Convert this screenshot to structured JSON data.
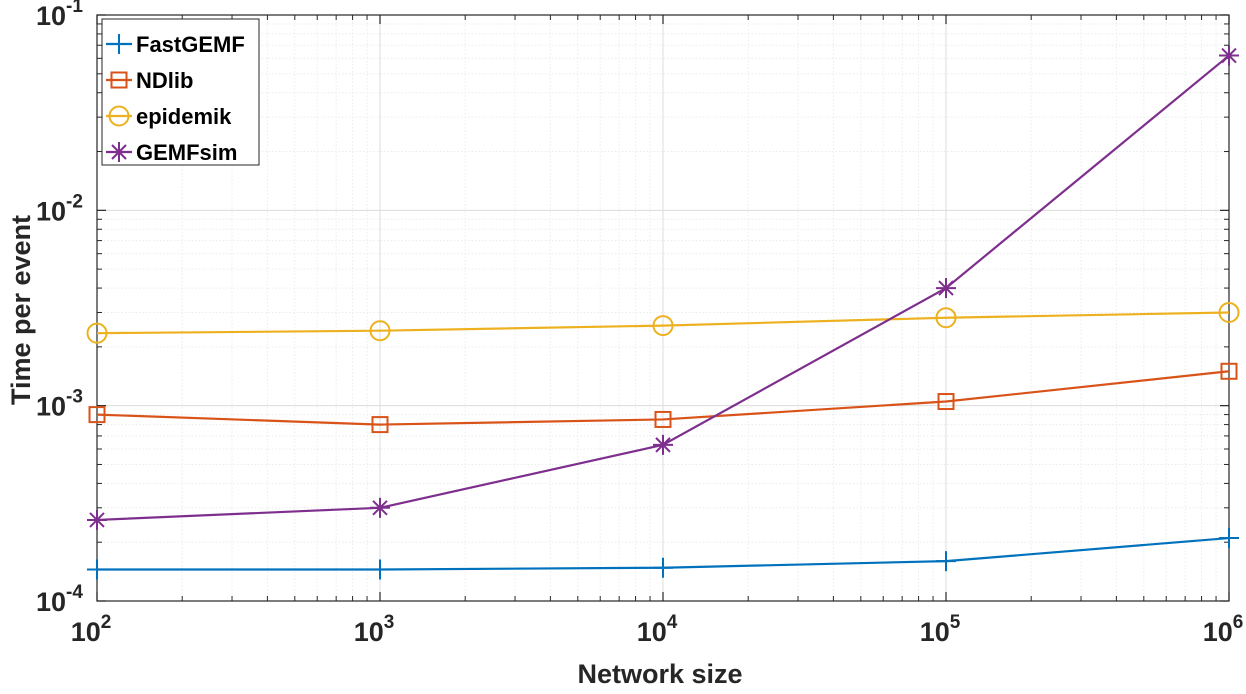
{
  "chart_data": {
    "type": "line",
    "xscale": "log",
    "yscale": "log",
    "xlabel": "Network size",
    "ylabel": "Time per event",
    "xlim": [
      100,
      1000000
    ],
    "ylim": [
      0.0001,
      0.1
    ],
    "grid": true,
    "legend_position": "top-left",
    "x": [
      100,
      1000,
      10000,
      100000,
      1000000
    ],
    "x_ticks": [
      {
        "base": "10",
        "exp": "2",
        "value": 100
      },
      {
        "base": "10",
        "exp": "3",
        "value": 1000
      },
      {
        "base": "10",
        "exp": "4",
        "value": 10000
      },
      {
        "base": "10",
        "exp": "5",
        "value": 100000
      },
      {
        "base": "10",
        "exp": "6",
        "value": 1000000
      }
    ],
    "y_ticks": [
      {
        "base": "10",
        "exp": "-4",
        "value": 0.0001
      },
      {
        "base": "10",
        "exp": "-3",
        "value": 0.001
      },
      {
        "base": "10",
        "exp": "-2",
        "value": 0.01
      },
      {
        "base": "10",
        "exp": "-1",
        "value": 0.1
      }
    ],
    "series": [
      {
        "name": "FastGEMF",
        "color": "#0072BD",
        "marker": "plus",
        "values": [
          0.000145,
          0.000145,
          0.000148,
          0.00016,
          0.00021
        ]
      },
      {
        "name": "NDlib",
        "color": "#D95319",
        "marker": "square",
        "values": [
          0.0009,
          0.0008,
          0.00085,
          0.00105,
          0.0015
        ]
      },
      {
        "name": "epidemik",
        "color": "#EDB120",
        "marker": "circle",
        "values": [
          0.00235,
          0.00242,
          0.00257,
          0.00282,
          0.003
        ]
      },
      {
        "name": "GEMFsim",
        "color": "#7E2F8E",
        "marker": "asterisk",
        "values": [
          0.00026,
          0.0003,
          0.00063,
          0.004,
          0.062
        ]
      }
    ]
  }
}
